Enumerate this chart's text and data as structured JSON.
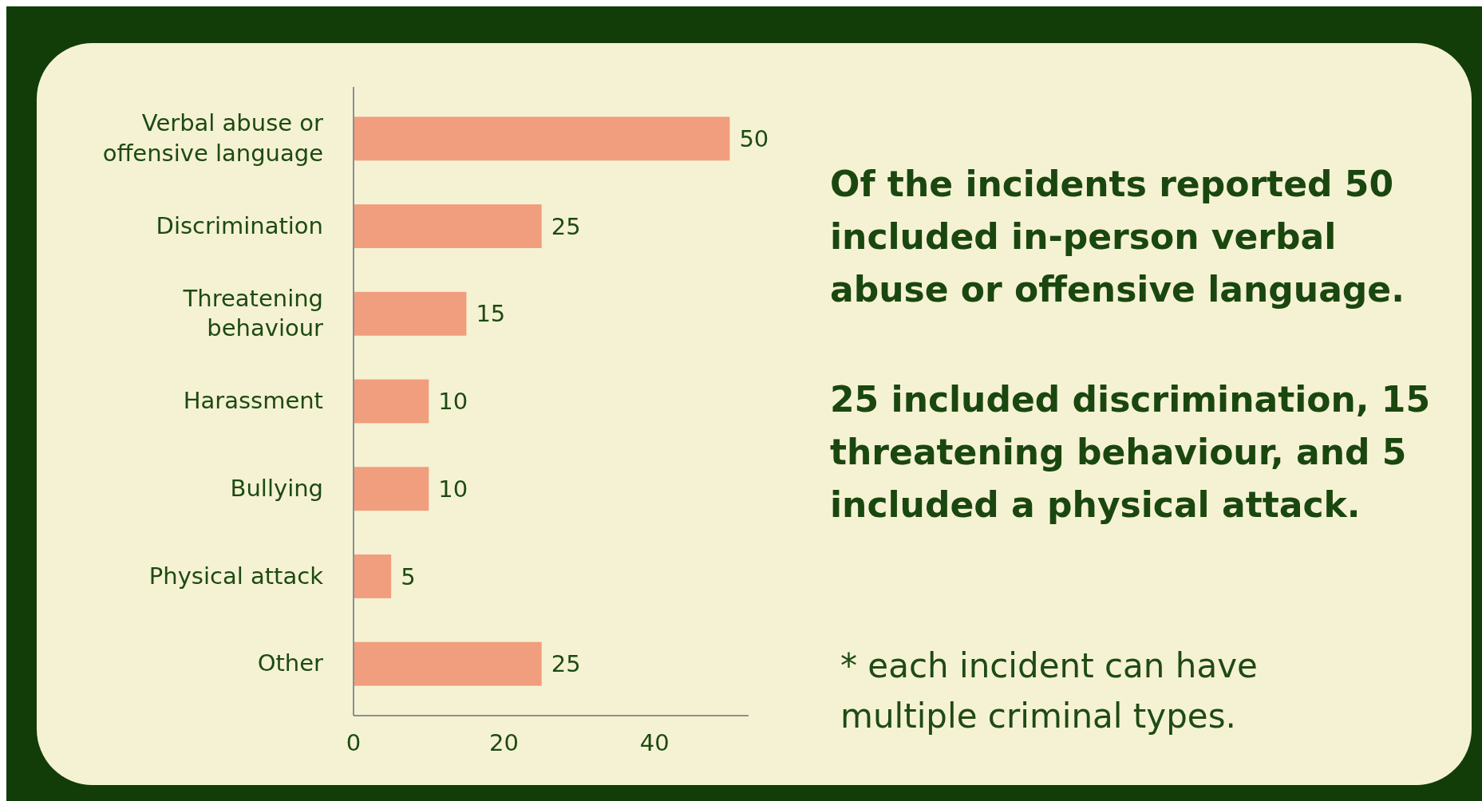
{
  "chart_data": {
    "type": "bar",
    "orientation": "horizontal",
    "categories": [
      "Verbal abuse or offensive language",
      "Discrimination",
      "Threatening behaviour",
      "Harassment",
      "Bullying",
      "Physical attack",
      "Other"
    ],
    "values": [
      50,
      25,
      15,
      10,
      10,
      5,
      25
    ],
    "color": "#f09e7e",
    "xlim": [
      0,
      52.5
    ],
    "xticks": [
      0,
      20,
      40
    ],
    "data_labels": true,
    "grid": false,
    "annotations": [
      "Of the incidents reported 50 included in-person verbal abuse or offensive language.",
      "25 included discrimination, 15 threatening behaviour, and 5 included a physical attack.",
      "* each incident can have multiple criminal types."
    ]
  }
}
